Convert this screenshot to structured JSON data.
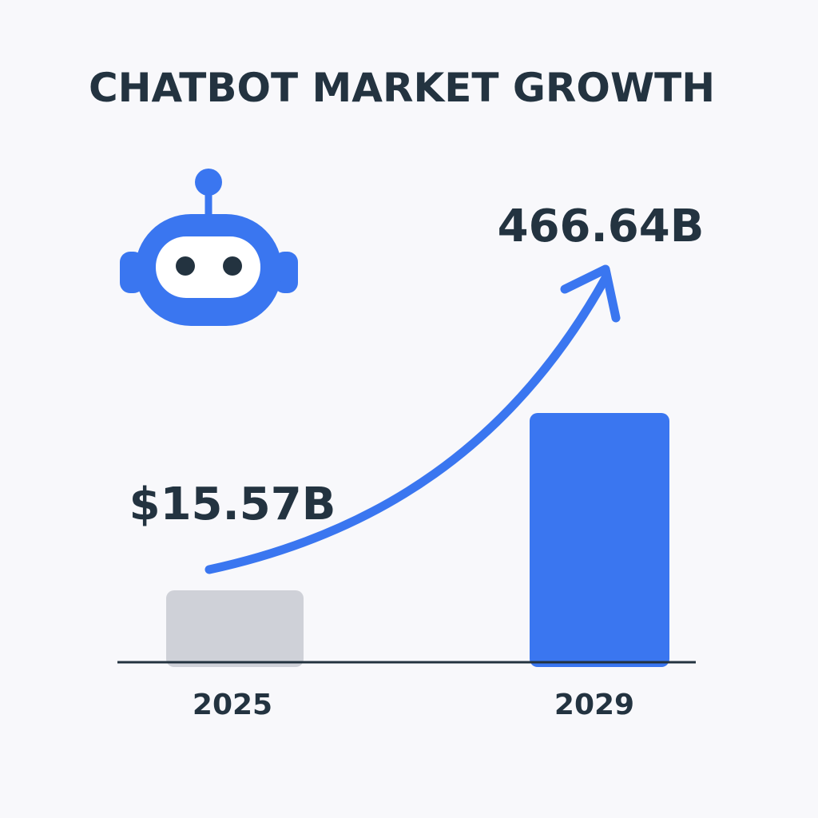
{
  "chart_data": {
    "type": "bar",
    "title": "CHATBOT MARKET GROWTH",
    "categories": [
      "2025",
      "2029"
    ],
    "values": [
      15.57,
      466.64
    ],
    "value_labels": [
      "$15.57B",
      "466.64B"
    ],
    "bar_colors": [
      "#cfd1d8",
      "#3a76f0"
    ],
    "trend_arrow": true,
    "axis_line": true,
    "grid": false,
    "legend": "none"
  },
  "icon": {
    "name": "robot-icon",
    "color": "#3a76f0"
  },
  "colors": {
    "text": "#233340",
    "accent": "#3a76f0",
    "background": "#f8f8fb",
    "axis": "#233340"
  }
}
